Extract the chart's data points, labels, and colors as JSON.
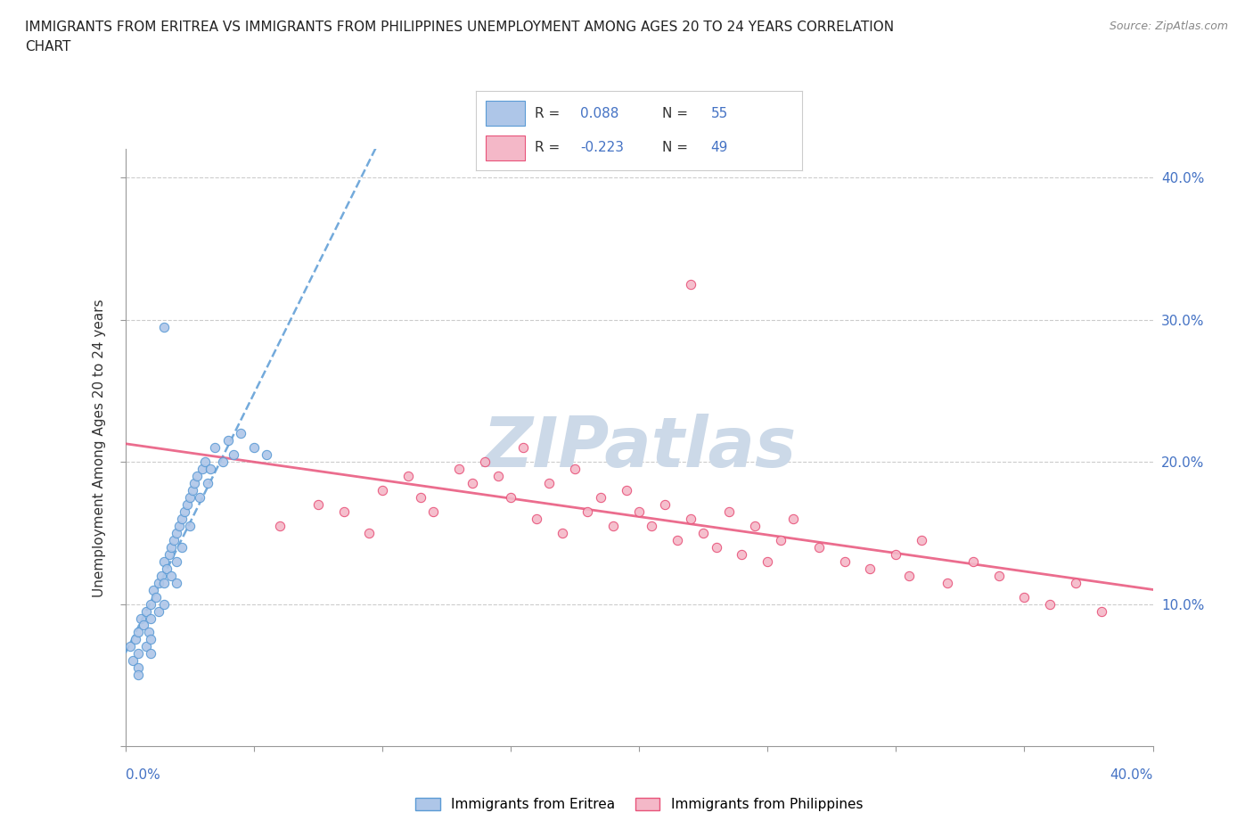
{
  "title_line1": "IMMIGRANTS FROM ERITREA VS IMMIGRANTS FROM PHILIPPINES UNEMPLOYMENT AMONG AGES 20 TO 24 YEARS CORRELATION",
  "title_line2": "CHART",
  "source": "Source: ZipAtlas.com",
  "ylabel": "Unemployment Among Ages 20 to 24 years",
  "color_eritrea_fill": "#aec6e8",
  "color_eritrea_edge": "#5b9bd5",
  "color_philippines_fill": "#f4b8c8",
  "color_philippines_edge": "#e8537a",
  "color_eritrea_trendline": "#5b9bd5",
  "color_philippines_trendline": "#e8537a",
  "watermark_color": "#ccd9e8",
  "xmin": 0.0,
  "xmax": 0.4,
  "ymin": 0.0,
  "ymax": 0.42,
  "ytick_labels": [
    "",
    "10.0%",
    "20.0%",
    "30.0%",
    "40.0%"
  ],
  "ytick_vals": [
    0.0,
    0.1,
    0.2,
    0.3,
    0.4
  ],
  "tick_color": "#4472c4",
  "eritrea_x": [
    0.002,
    0.003,
    0.004,
    0.005,
    0.005,
    0.005,
    0.005,
    0.006,
    0.007,
    0.008,
    0.008,
    0.009,
    0.01,
    0.01,
    0.01,
    0.01,
    0.011,
    0.012,
    0.013,
    0.013,
    0.014,
    0.015,
    0.015,
    0.015,
    0.016,
    0.017,
    0.018,
    0.018,
    0.019,
    0.02,
    0.02,
    0.02,
    0.021,
    0.022,
    0.022,
    0.023,
    0.024,
    0.025,
    0.025,
    0.026,
    0.027,
    0.028,
    0.029,
    0.03,
    0.031,
    0.032,
    0.033,
    0.035,
    0.038,
    0.04,
    0.042,
    0.045,
    0.05,
    0.055,
    0.015
  ],
  "eritrea_y": [
    0.07,
    0.06,
    0.075,
    0.08,
    0.065,
    0.055,
    0.05,
    0.09,
    0.085,
    0.095,
    0.07,
    0.08,
    0.1,
    0.09,
    0.075,
    0.065,
    0.11,
    0.105,
    0.115,
    0.095,
    0.12,
    0.13,
    0.115,
    0.1,
    0.125,
    0.135,
    0.14,
    0.12,
    0.145,
    0.15,
    0.13,
    0.115,
    0.155,
    0.16,
    0.14,
    0.165,
    0.17,
    0.175,
    0.155,
    0.18,
    0.185,
    0.19,
    0.175,
    0.195,
    0.2,
    0.185,
    0.195,
    0.21,
    0.2,
    0.215,
    0.205,
    0.22,
    0.21,
    0.205,
    0.295
  ],
  "philippines_x": [
    0.06,
    0.075,
    0.085,
    0.095,
    0.1,
    0.11,
    0.115,
    0.12,
    0.13,
    0.135,
    0.14,
    0.145,
    0.15,
    0.155,
    0.16,
    0.165,
    0.17,
    0.175,
    0.18,
    0.185,
    0.19,
    0.195,
    0.2,
    0.205,
    0.21,
    0.215,
    0.22,
    0.225,
    0.23,
    0.235,
    0.24,
    0.245,
    0.25,
    0.255,
    0.26,
    0.27,
    0.28,
    0.29,
    0.3,
    0.305,
    0.31,
    0.32,
    0.33,
    0.34,
    0.35,
    0.36,
    0.37,
    0.38,
    0.22
  ],
  "philippines_y": [
    0.155,
    0.17,
    0.165,
    0.15,
    0.18,
    0.19,
    0.175,
    0.165,
    0.195,
    0.185,
    0.2,
    0.19,
    0.175,
    0.21,
    0.16,
    0.185,
    0.15,
    0.195,
    0.165,
    0.175,
    0.155,
    0.18,
    0.165,
    0.155,
    0.17,
    0.145,
    0.16,
    0.15,
    0.14,
    0.165,
    0.135,
    0.155,
    0.13,
    0.145,
    0.16,
    0.14,
    0.13,
    0.125,
    0.135,
    0.12,
    0.145,
    0.115,
    0.13,
    0.12,
    0.105,
    0.1,
    0.115,
    0.095,
    0.325
  ]
}
